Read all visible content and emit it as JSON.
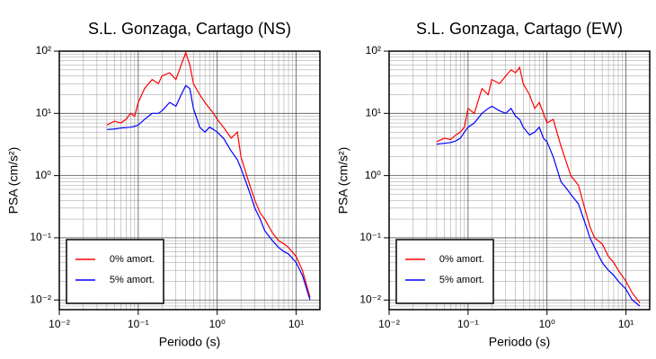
{
  "chart_data": [
    {
      "type": "line",
      "title": "S.L. Gonzaga, Cartago (NS)",
      "xlabel": "Periodo (s)",
      "ylabel": "PSA (cm/s²)",
      "log_x": true,
      "log_y": true,
      "grid": true,
      "minor_grid": true,
      "legend": "lower left",
      "xlim": [
        0.01,
        20
      ],
      "ylim": [
        0.007,
        100
      ],
      "xticks": [
        {
          "value": 0.01,
          "label": "10⁻²"
        },
        {
          "value": 0.1,
          "label": "10⁻¹"
        },
        {
          "value": 1,
          "label": "10⁰"
        },
        {
          "value": 10,
          "label": "10¹"
        }
      ],
      "yticks": [
        {
          "value": 0.01,
          "label": "10⁻²"
        },
        {
          "value": 0.1,
          "label": "10⁻¹"
        },
        {
          "value": 1,
          "label": "10⁰"
        },
        {
          "value": 10,
          "label": "10¹"
        },
        {
          "value": 100,
          "label": "10²"
        }
      ],
      "x": [
        0.04,
        0.05,
        0.06,
        0.07,
        0.08,
        0.09,
        0.1,
        0.12,
        0.15,
        0.18,
        0.2,
        0.25,
        0.3,
        0.35,
        0.4,
        0.45,
        0.5,
        0.6,
        0.7,
        0.8,
        0.9,
        1.0,
        1.2,
        1.5,
        1.8,
        2,
        2.5,
        3,
        3.5,
        4,
        5,
        6,
        7,
        8,
        10,
        12,
        15
      ],
      "series": [
        {
          "name": "0% amort.",
          "color": "#ff0000",
          "values": [
            6.5,
            7.5,
            7,
            8,
            10,
            9,
            15,
            25,
            35,
            30,
            40,
            45,
            35,
            60,
            95,
            60,
            30,
            20,
            15,
            12,
            10,
            8,
            6,
            4,
            5,
            2,
            0.8,
            0.4,
            0.25,
            0.2,
            0.12,
            0.09,
            0.08,
            0.07,
            0.05,
            0.03,
            0.011
          ]
        },
        {
          "name": "5% amort.",
          "color": "#0000ff",
          "values": [
            5.5,
            5.6,
            5.8,
            5.9,
            6,
            6.2,
            6.5,
            8,
            10,
            10,
            11,
            15,
            13,
            20,
            28,
            25,
            12,
            6,
            5,
            6,
            5.5,
            5,
            4,
            2.5,
            1.8,
            1.3,
            0.6,
            0.3,
            0.2,
            0.13,
            0.09,
            0.07,
            0.06,
            0.055,
            0.04,
            0.025,
            0.01
          ]
        }
      ]
    },
    {
      "type": "line",
      "title": "S.L. Gonzaga, Cartago (EW)",
      "xlabel": "Periodo (s)",
      "ylabel": "PSA (cm/s²)",
      "log_x": true,
      "log_y": true,
      "grid": true,
      "minor_grid": true,
      "legend": "lower left",
      "xlim": [
        0.01,
        20
      ],
      "ylim": [
        0.007,
        100
      ],
      "xticks": [
        {
          "value": 0.01,
          "label": "10⁻²"
        },
        {
          "value": 0.1,
          "label": "10⁻¹"
        },
        {
          "value": 1,
          "label": "10⁰"
        },
        {
          "value": 10,
          "label": "10¹"
        }
      ],
      "yticks": [
        {
          "value": 0.01,
          "label": "10⁻²"
        },
        {
          "value": 0.1,
          "label": "10⁻¹"
        },
        {
          "value": 1,
          "label": "10⁰"
        },
        {
          "value": 10,
          "label": "10¹"
        },
        {
          "value": 100,
          "label": "10²"
        }
      ],
      "x": [
        0.04,
        0.05,
        0.06,
        0.07,
        0.08,
        0.09,
        0.1,
        0.12,
        0.15,
        0.18,
        0.2,
        0.25,
        0.3,
        0.35,
        0.4,
        0.45,
        0.5,
        0.6,
        0.7,
        0.8,
        0.9,
        1.0,
        1.2,
        1.5,
        1.8,
        2,
        2.5,
        3,
        3.5,
        4,
        5,
        6,
        7,
        8,
        10,
        12,
        15
      ],
      "series": [
        {
          "name": "0% amort.",
          "color": "#ff0000",
          "values": [
            3.5,
            4,
            3.8,
            4.5,
            5,
            6,
            12,
            10,
            25,
            20,
            35,
            30,
            40,
            50,
            45,
            55,
            30,
            20,
            12,
            15,
            10,
            7,
            8,
            3,
            1.5,
            1.0,
            0.7,
            0.3,
            0.15,
            0.1,
            0.08,
            0.05,
            0.04,
            0.03,
            0.02,
            0.013,
            0.009
          ]
        },
        {
          "name": "5% amort.",
          "color": "#0000ff",
          "values": [
            3.2,
            3.3,
            3.4,
            3.6,
            4,
            5,
            6,
            7,
            10,
            12,
            13,
            11,
            10,
            12,
            9,
            8,
            6,
            4.5,
            5,
            6,
            4,
            3.5,
            2,
            0.8,
            0.6,
            0.5,
            0.35,
            0.18,
            0.1,
            0.07,
            0.04,
            0.03,
            0.025,
            0.02,
            0.015,
            0.01,
            0.008
          ]
        }
      ]
    }
  ]
}
